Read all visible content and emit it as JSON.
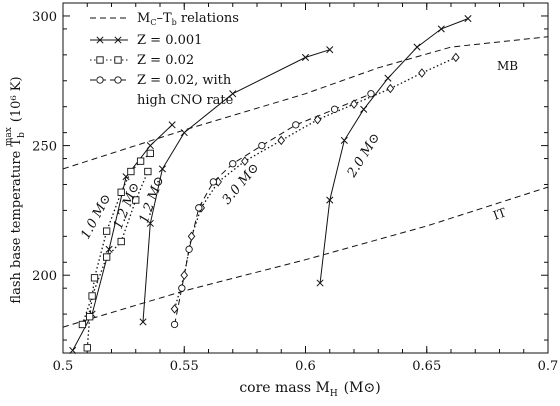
{
  "chart_data": {
    "type": "line",
    "xlabel": "core mass M",
    "xlabel_sub": "H",
    "xlabel_unit": "(M⊙)",
    "ylabel": "flash base temperature T",
    "ylabel_sub": "b",
    "ylabel_sup": "max",
    "ylabel_unit": "(10⁶ K)",
    "xlim": [
      0.5,
      0.7
    ],
    "ylim": [
      170,
      305
    ],
    "x_ticks": [
      0.5,
      0.55,
      0.6,
      0.65,
      0.7
    ],
    "x_tick_labels": [
      "0.5",
      "0.55",
      "0.6",
      "0.65",
      "0.7"
    ],
    "y_ticks": [
      200,
      250,
      300
    ],
    "y_tick_labels": [
      "200",
      "250",
      "300"
    ],
    "legend": {
      "placement": "top-left",
      "entries": [
        {
          "label": "M",
          "label_sub": "C",
          "label_rest": "–T",
          "label_sub2": "b",
          "label_tail": " relations",
          "style": "dashed"
        },
        {
          "label": "Z = 0.001",
          "style": "solid",
          "marker": "x"
        },
        {
          "label": "Z = 0.02",
          "style": "dotted",
          "marker": "square"
        },
        {
          "label": "Z = 0.02, with",
          "label2": "high CNO rate",
          "style": "dashed",
          "marker": "circle"
        }
      ]
    },
    "series": [
      {
        "name": "MB",
        "style": "dashed",
        "x": [
          0.5,
          0.55,
          0.6,
          0.63,
          0.66,
          0.7
        ],
        "y": [
          241,
          256,
          270,
          280,
          288,
          292
        ]
      },
      {
        "name": "IT",
        "style": "dashed",
        "x": [
          0.5,
          0.55,
          0.6,
          0.65,
          0.7
        ],
        "y": [
          180,
          194,
          206,
          219,
          234
        ]
      },
      {
        "group": "1.0",
        "z": "Z = 0.001",
        "style": "solid",
        "marker": "x",
        "x": [
          0.504,
          0.512,
          0.519,
          0.526,
          0.536,
          0.545
        ],
        "y": [
          171,
          185,
          210,
          238,
          250,
          258
        ]
      },
      {
        "group": "1.0",
        "z": "Z = 0.02",
        "style": "dotted",
        "marker": "square",
        "x": [
          0.51,
          0.511,
          0.513,
          0.518,
          0.524,
          0.528,
          0.532,
          0.536
        ],
        "y": [
          172,
          184,
          199,
          217,
          232,
          240,
          244,
          247
        ]
      },
      {
        "group": "1.2",
        "z": "Z = 0.001",
        "style": "solid",
        "marker": "x",
        "x": [
          0.533,
          0.536,
          0.541,
          0.55,
          0.57,
          0.6,
          0.61
        ],
        "y": [
          182,
          220,
          241,
          255,
          270,
          284,
          287
        ]
      },
      {
        "group": "1.2",
        "z": "Z = 0.02",
        "style": "dotted",
        "marker": "square",
        "x": [
          0.508,
          0.512,
          0.518,
          0.524,
          0.53,
          0.535
        ],
        "y": [
          181,
          192,
          207,
          213,
          229,
          240
        ]
      },
      {
        "group": "3.0",
        "z": "Z = 0.02",
        "style": "dotted",
        "marker": "diamond",
        "x": [
          0.546,
          0.55,
          0.553,
          0.557,
          0.564,
          0.575,
          0.59,
          0.605,
          0.62,
          0.635,
          0.648,
          0.662
        ],
        "y": [
          187,
          200,
          215,
          226,
          236,
          244,
          252,
          260,
          266,
          272,
          278,
          284
        ]
      },
      {
        "group": "3.0",
        "z": "Z = 0.02, with high CNO rate",
        "style": "dashed",
        "marker": "circle",
        "x": [
          0.546,
          0.549,
          0.552,
          0.556,
          0.562,
          0.57,
          0.582,
          0.596,
          0.612,
          0.627
        ],
        "y": [
          181,
          195,
          210,
          226,
          236,
          243,
          250,
          258,
          264,
          270
        ]
      },
      {
        "group": "2.0",
        "z": "Z = 0.001",
        "style": "solid",
        "marker": "x",
        "x": [
          0.606,
          0.61,
          0.616,
          0.624,
          0.634,
          0.646,
          0.656,
          0.667
        ],
        "y": [
          197,
          229,
          252,
          264,
          276,
          288,
          295,
          299
        ]
      }
    ],
    "curve_labels": [
      {
        "mass": "1.0",
        "unit": "M⊙"
      },
      {
        "mass": "1.2",
        "unit": "M⊙"
      },
      {
        "mass": "1.2",
        "unit": "M⊙"
      },
      {
        "mass": "3.0",
        "unit": "M⊙"
      },
      {
        "mass": "2.0",
        "unit": "M⊙"
      }
    ],
    "line_labels": [
      "MB",
      "IT"
    ]
  }
}
